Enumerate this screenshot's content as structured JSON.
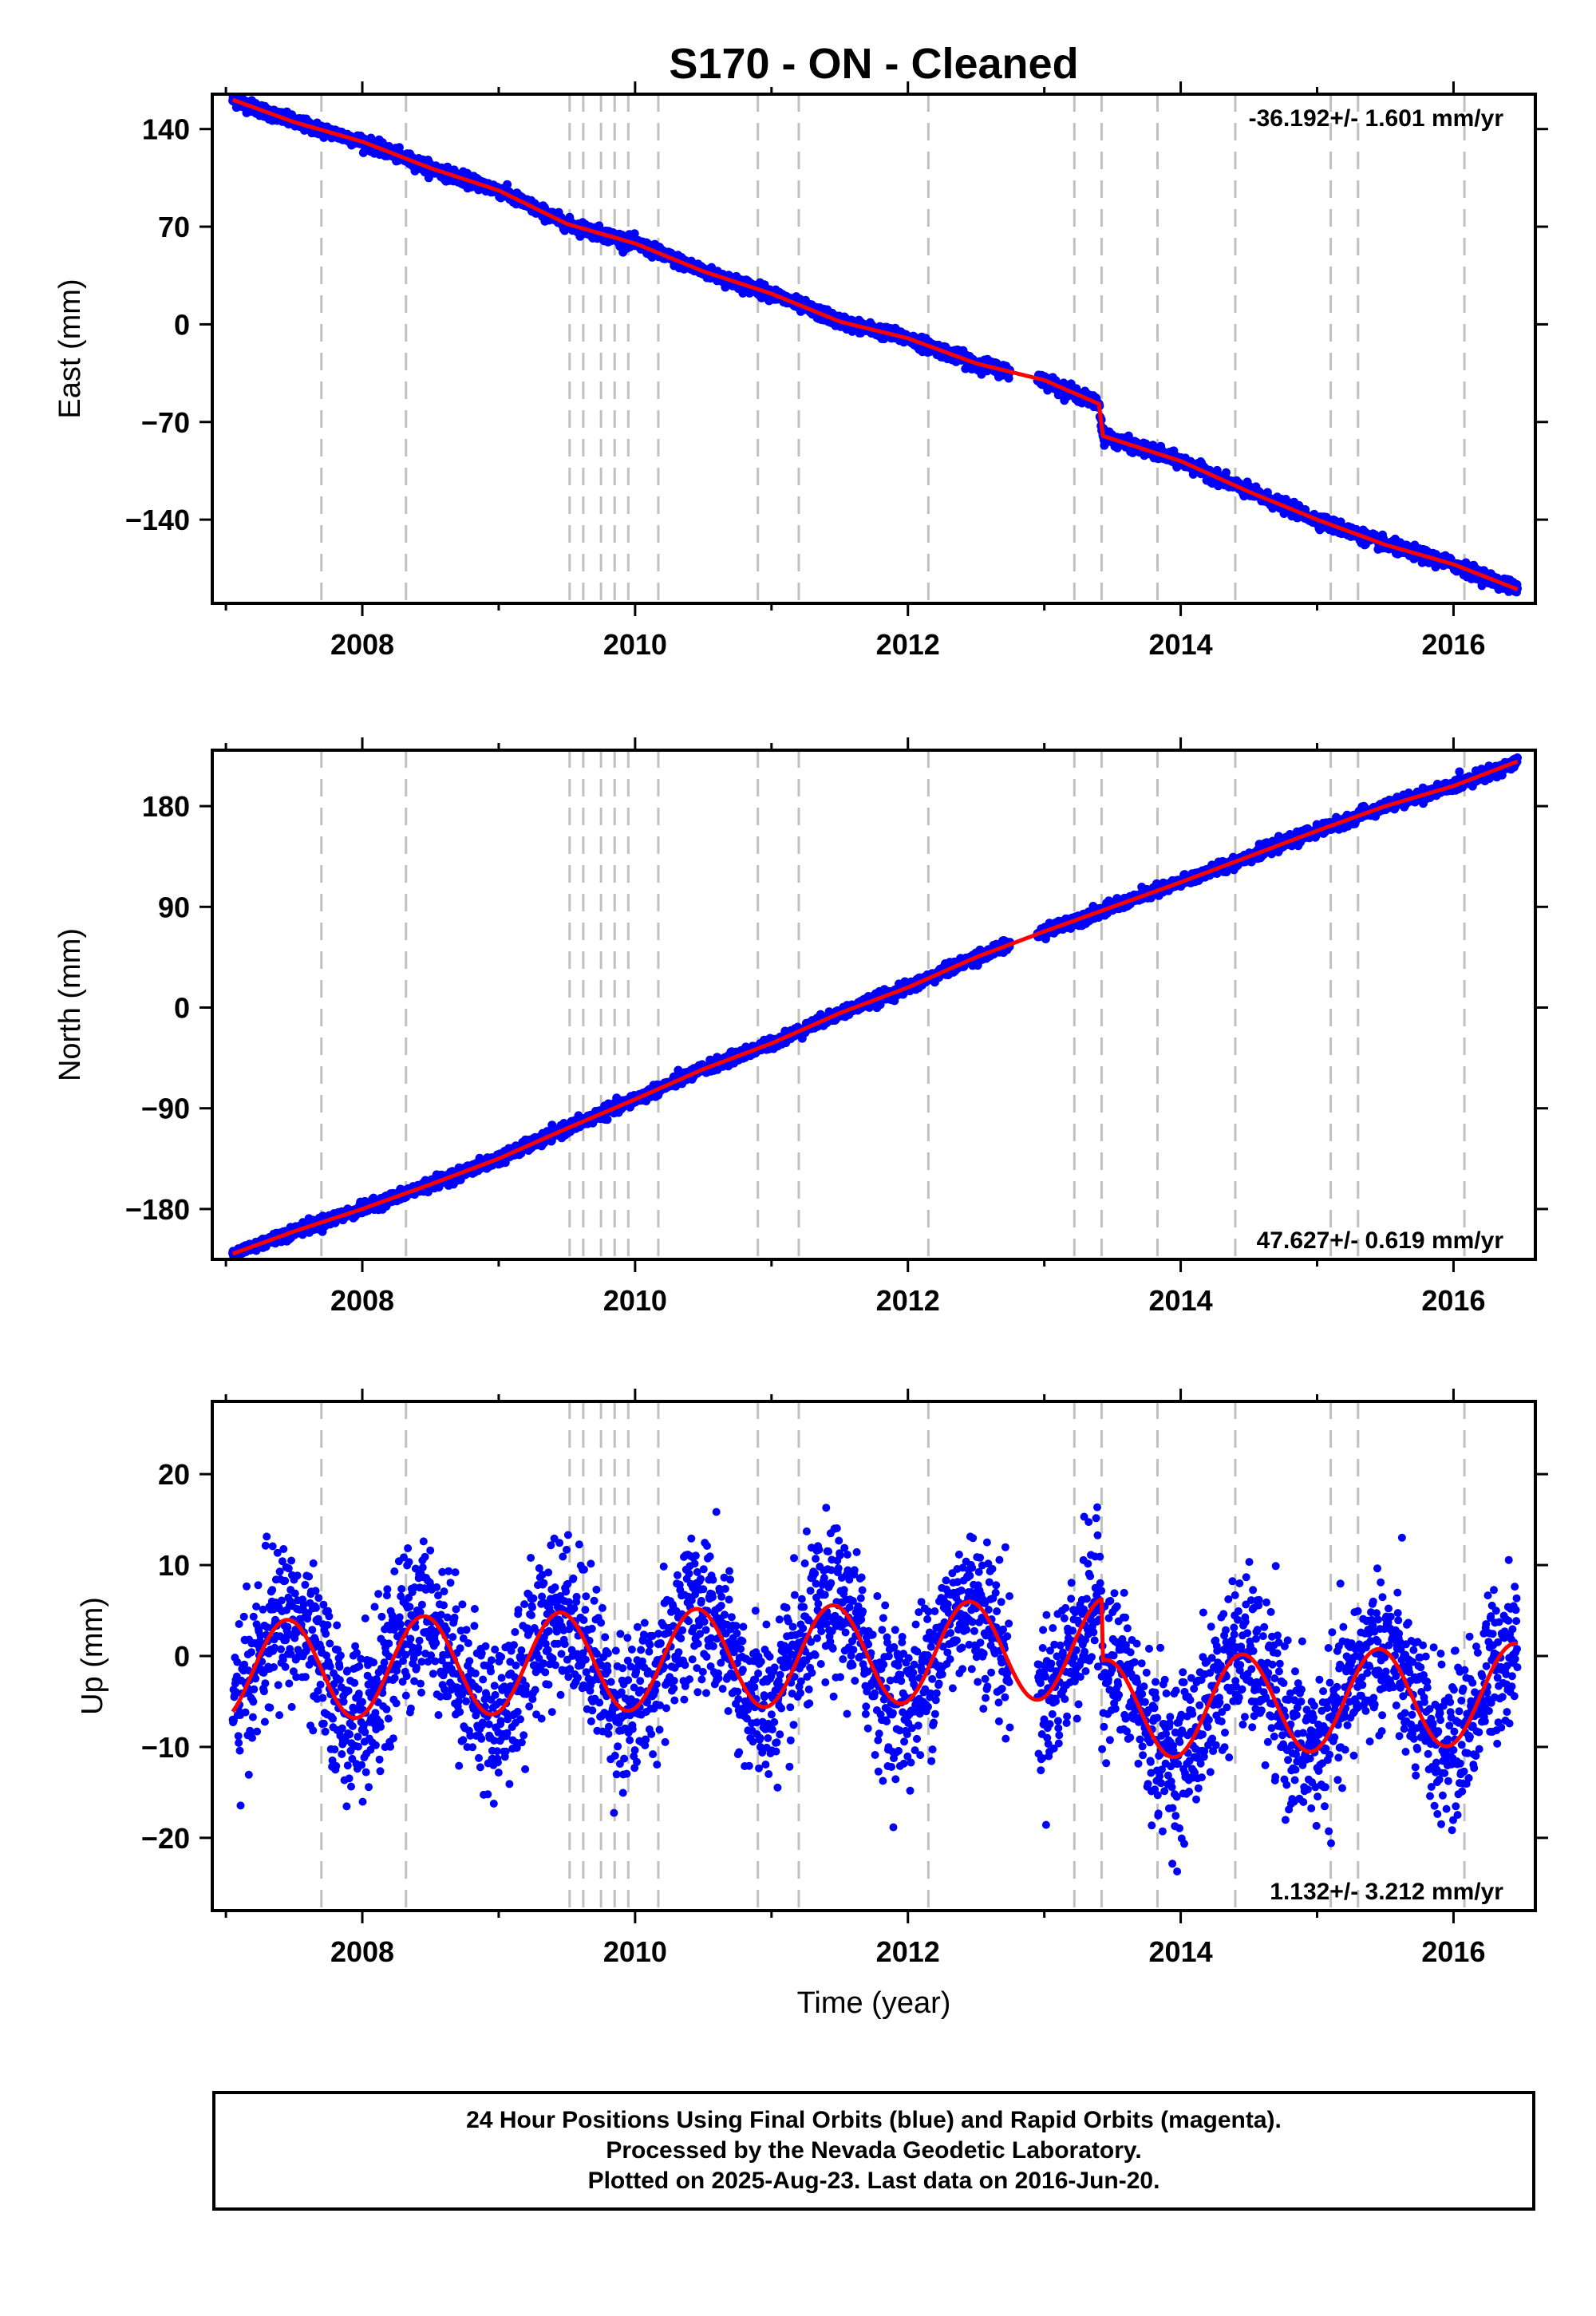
{
  "title": "S170  - ON - Cleaned",
  "footer": {
    "line1": "24 Hour Positions Using Final Orbits (blue) and Rapid Orbits (magenta).",
    "line2": "Processed by the Nevada Geodetic Laboratory.",
    "line3": "Plotted on 2025-Aug-23. Last data on 2016-Jun-20."
  },
  "colors": {
    "data": "#0000ff",
    "model": "#ff0000",
    "event_line": "#c0c0c0",
    "frame": "#000000"
  },
  "chart_data": [
    {
      "type": "scatter",
      "component": "east",
      "ylabel": "East (mm)",
      "xlabel": "",
      "xlim": [
        2006.9,
        2016.6
      ],
      "ylim": [
        -200,
        165
      ],
      "xticks": [
        2008,
        2010,
        2012,
        2014,
        2016
      ],
      "yticks": [
        140,
        70,
        0,
        -70,
        -140
      ],
      "ytick_labels": [
        "140",
        "70",
        "0",
        "−70",
        "−140"
      ],
      "rate": "-36.192+/- 1.601 mm/yr",
      "rate_position": "top-right",
      "start": [
        2007.05,
        161
      ],
      "end": [
        2016.47,
        -190
      ],
      "series": [
        {
          "values": [
            [
              2007.05,
              161
            ],
            [
              2007.5,
              145
            ],
            [
              2008.0,
              131
            ],
            [
              2008.5,
              112
            ],
            [
              2009.0,
              96
            ],
            [
              2009.5,
              72
            ],
            [
              2010.0,
              58
            ],
            [
              2010.5,
              38
            ],
            [
              2011.0,
              22
            ],
            [
              2011.5,
              2
            ],
            [
              2012.0,
              -10
            ],
            [
              2012.5,
              -28
            ],
            [
              2013.0,
              -40
            ],
            [
              2013.4,
              -57
            ],
            [
              2013.43,
              -80
            ],
            [
              2014.0,
              -98
            ],
            [
              2014.5,
              -120
            ],
            [
              2015.0,
              -140
            ],
            [
              2015.5,
              -158
            ],
            [
              2016.0,
              -172
            ],
            [
              2016.47,
              -190
            ]
          ]
        }
      ],
      "gap": [
        2012.75,
        2012.95
      ],
      "noise_mm": 2.2
    },
    {
      "type": "scatter",
      "component": "north",
      "ylabel": "North (mm)",
      "xlabel": "",
      "xlim": [
        2006.9,
        2016.6
      ],
      "ylim": [
        -225,
        230
      ],
      "xticks": [
        2008,
        2010,
        2012,
        2014,
        2016
      ],
      "yticks": [
        180,
        90,
        0,
        -90,
        -180
      ],
      "ytick_labels": [
        "180",
        "90",
        "0",
        "−90",
        "−180"
      ],
      "rate": "47.627+/- 0.619 mm/yr",
      "rate_position": "bottom-right",
      "series": [
        {
          "values": [
            [
              2007.05,
              -220
            ],
            [
              2007.5,
              -200
            ],
            [
              2008.0,
              -180
            ],
            [
              2008.5,
              -158
            ],
            [
              2009.0,
              -135
            ],
            [
              2009.5,
              -108
            ],
            [
              2010.0,
              -82
            ],
            [
              2010.5,
              -55
            ],
            [
              2011.0,
              -32
            ],
            [
              2011.5,
              -5
            ],
            [
              2012.0,
              18
            ],
            [
              2012.5,
              45
            ],
            [
              2013.0,
              68
            ],
            [
              2013.5,
              90
            ],
            [
              2014.0,
              112
            ],
            [
              2014.5,
              135
            ],
            [
              2015.0,
              158
            ],
            [
              2015.5,
              180
            ],
            [
              2016.0,
              198
            ],
            [
              2016.47,
              220
            ]
          ]
        }
      ],
      "gap": [
        2012.75,
        2012.95
      ],
      "noise_mm": 2.5
    },
    {
      "type": "scatter",
      "component": "up",
      "ylabel": "Up (mm)",
      "xlabel": "Time (year)",
      "xlim": [
        2006.9,
        2016.6
      ],
      "ylim": [
        -28,
        28
      ],
      "xticks": [
        2008,
        2010,
        2012,
        2014,
        2016
      ],
      "yticks": [
        20,
        10,
        0,
        -10,
        -20
      ],
      "ytick_labels": [
        "20",
        "10",
        "0",
        "−10",
        "−20"
      ],
      "rate": "1.132+/- 3.212 mm/yr",
      "rate_position": "bottom-right",
      "model": {
        "seasonal_amplitude_mm": 5.5,
        "peak_phase_year": 0.45,
        "segments": [
          {
            "from": 2007.05,
            "to": 2013.42,
            "offset_mm": -0.5,
            "trend_mm_per_yr": 0.4,
            "ref_year": 2010.0
          },
          {
            "from": 2013.42,
            "to": 2016.47,
            "offset_mm": -5.0,
            "trend_mm_per_yr": 0.6,
            "ref_year": 2015.0
          }
        ]
      },
      "gap": [
        2012.75,
        2012.95
      ],
      "noise_mm": 4.2
    }
  ],
  "event_lines": [
    2007.7,
    2008.32,
    2009.52,
    2009.62,
    2009.75,
    2009.85,
    2009.95,
    2010.17,
    2010.9,
    2011.2,
    2012.15,
    2013.22,
    2013.42,
    2013.83,
    2014.4,
    2015.1,
    2015.3,
    2016.08
  ]
}
